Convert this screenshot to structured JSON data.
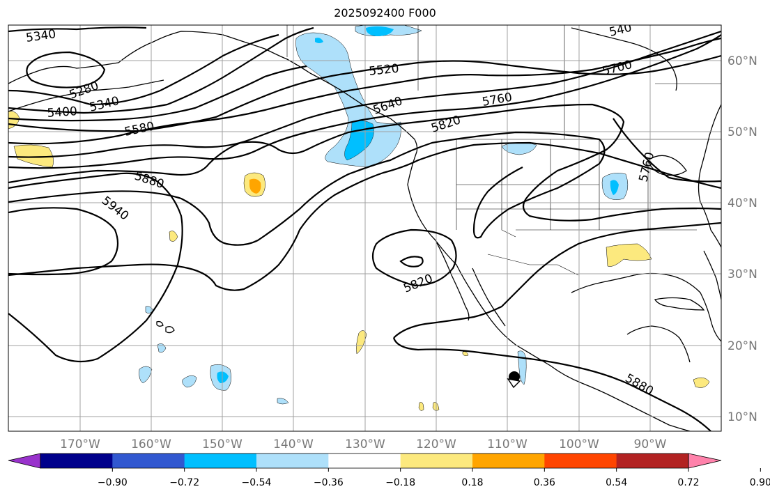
{
  "title": "2025092400 F000",
  "map": {
    "lon_labels": [
      "170°W",
      "160°W",
      "150°W",
      "140°W",
      "130°W",
      "120°W",
      "110°W",
      "100°W",
      "90°W"
    ],
    "lat_labels": [
      "60°N",
      "50°N",
      "40°N",
      "30°N",
      "20°N",
      "10°N"
    ],
    "contour_labels": [
      "5340",
      "5280",
      "5400",
      "5340",
      "5580",
      "5520",
      "5640",
      "5760",
      "5700",
      "5820",
      "5880",
      "5940",
      "5820",
      "5880",
      "5760",
      "540"
    ],
    "colors": {
      "contour": "#000000",
      "coast": "#000000",
      "grid": "#a0a0a0"
    }
  },
  "colorbar": {
    "ticks": [
      "−0.90",
      "−0.72",
      "−0.54",
      "−0.36",
      "−0.18",
      "0.18",
      "0.36",
      "0.54",
      "0.72",
      "0.90"
    ],
    "colors": [
      "#9932cc",
      "#00008b",
      "#3158d0",
      "#00bfff",
      "#aee0fa",
      "#ffffff",
      "#fce97e",
      "#ffa500",
      "#ff4500",
      "#b22222",
      "#ff82ab"
    ],
    "extend": "both"
  }
}
